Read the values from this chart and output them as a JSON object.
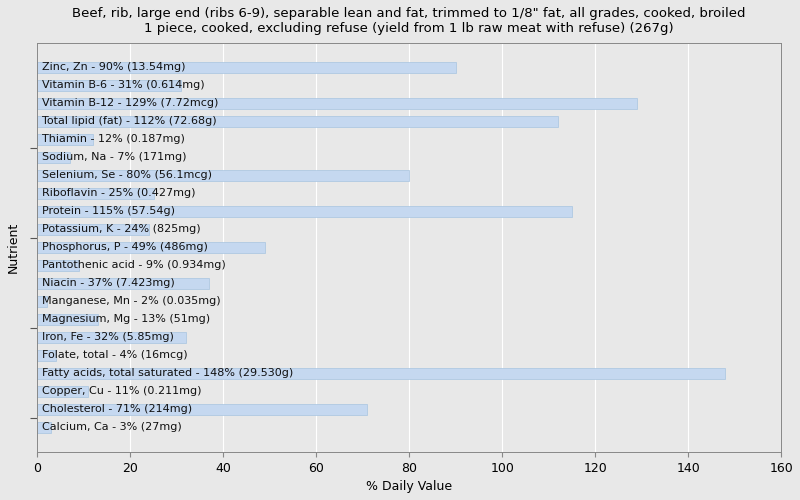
{
  "title": "Beef, rib, large end (ribs 6-9), separable lean and fat, trimmed to 1/8\" fat, all grades, cooked, broiled\n1 piece, cooked, excluding refuse (yield from 1 lb raw meat with refuse) (267g)",
  "xlabel": "% Daily Value",
  "ylabel": "Nutrient",
  "xlim": [
    0,
    160
  ],
  "xticks": [
    0,
    20,
    40,
    60,
    80,
    100,
    120,
    140,
    160
  ],
  "background_color": "#e8e8e8",
  "bar_color": "#c5d8f0",
  "bar_edge_color": "#a8c4e0",
  "nutrients": [
    {
      "label": "Calcium, Ca - 3% (27mg)",
      "value": 3
    },
    {
      "label": "Cholesterol - 71% (214mg)",
      "value": 71
    },
    {
      "label": "Copper, Cu - 11% (0.211mg)",
      "value": 11
    },
    {
      "label": "Fatty acids, total saturated - 148% (29.530g)",
      "value": 148
    },
    {
      "label": "Folate, total - 4% (16mcg)",
      "value": 4
    },
    {
      "label": "Iron, Fe - 32% (5.85mg)",
      "value": 32
    },
    {
      "label": "Magnesium, Mg - 13% (51mg)",
      "value": 13
    },
    {
      "label": "Manganese, Mn - 2% (0.035mg)",
      "value": 2
    },
    {
      "label": "Niacin - 37% (7.423mg)",
      "value": 37
    },
    {
      "label": "Pantothenic acid - 9% (0.934mg)",
      "value": 9
    },
    {
      "label": "Phosphorus, P - 49% (486mg)",
      "value": 49
    },
    {
      "label": "Potassium, K - 24% (825mg)",
      "value": 24
    },
    {
      "label": "Protein - 115% (57.54g)",
      "value": 115
    },
    {
      "label": "Riboflavin - 25% (0.427mg)",
      "value": 25
    },
    {
      "label": "Selenium, Se - 80% (56.1mcg)",
      "value": 80
    },
    {
      "label": "Sodium, Na - 7% (171mg)",
      "value": 7
    },
    {
      "label": "Thiamin - 12% (0.187mg)",
      "value": 12
    },
    {
      "label": "Total lipid (fat) - 112% (72.68g)",
      "value": 112
    },
    {
      "label": "Vitamin B-12 - 129% (7.72mcg)",
      "value": 129
    },
    {
      "label": "Vitamin B-6 - 31% (0.614mg)",
      "value": 31
    },
    {
      "label": "Zinc, Zn - 90% (13.54mg)",
      "value": 90
    }
  ],
  "title_fontsize": 9.5,
  "label_fontsize": 8,
  "axis_label_fontsize": 9,
  "tick_fontsize": 9
}
